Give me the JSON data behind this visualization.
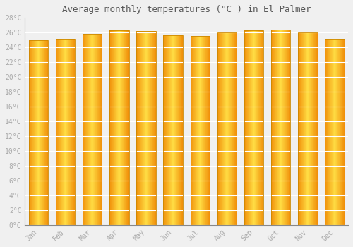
{
  "title": "Average monthly temperatures (°C ) in El Palmer",
  "months": [
    "Jan",
    "Feb",
    "Mar",
    "Apr",
    "May",
    "Jun",
    "Jul",
    "Aug",
    "Sep",
    "Oct",
    "Nov",
    "Dec"
  ],
  "values": [
    25.0,
    25.2,
    25.8,
    26.3,
    26.2,
    25.6,
    25.5,
    26.0,
    26.3,
    26.4,
    26.0,
    25.2
  ],
  "ylim": [
    0,
    28
  ],
  "yticks": [
    0,
    2,
    4,
    6,
    8,
    10,
    12,
    14,
    16,
    18,
    20,
    22,
    24,
    26,
    28
  ],
  "ytick_labels": [
    "0°C",
    "2°C",
    "4°C",
    "6°C",
    "8°C",
    "10°C",
    "12°C",
    "14°C",
    "16°C",
    "18°C",
    "20°C",
    "22°C",
    "24°C",
    "26°C",
    "28°C"
  ],
  "bar_color_center": "#FFDD44",
  "bar_color_edge": "#F0900A",
  "bar_edge_color": "#CC8800",
  "background_color": "#f0f0f0",
  "grid_color": "#ffffff",
  "title_fontsize": 9,
  "tick_fontsize": 7,
  "font_family": "monospace",
  "bar_width": 0.72
}
